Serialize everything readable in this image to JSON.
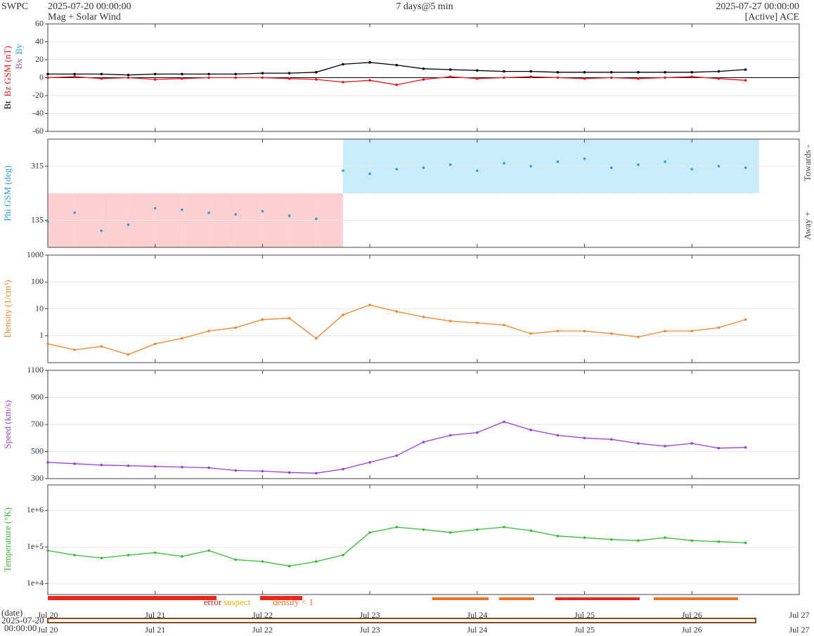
{
  "header": {
    "agency": "SWPC",
    "start": "2025-07-20 00:00:00",
    "subtitle": "Mag + Solar Wind",
    "span": "7 days@5 min",
    "end": "2025-07-27 00:00:00",
    "source": "[Active] ACE"
  },
  "time_axis": {
    "xlim": [
      0,
      7
    ],
    "xticks": [
      {
        "value": 0,
        "label": "Jul 20"
      },
      {
        "value": 1,
        "label": "Jul 21"
      },
      {
        "value": 2,
        "label": "Jul 22"
      },
      {
        "value": 3,
        "label": "Jul 23"
      },
      {
        "value": 4,
        "label": "Jul 24"
      },
      {
        "value": 5,
        "label": "Jul 25"
      },
      {
        "value": 6,
        "label": "Jul 26"
      },
      {
        "value": 7,
        "label": "Jul 27"
      }
    ],
    "date_label": "(date)",
    "date_line1": "2025-07-20",
    "date_line2": "00:00:00"
  },
  "flags": {
    "error": "error",
    "suspect": "suspect",
    "density": "density < 1"
  },
  "chart_data": [
    {
      "type": "line",
      "ylim": [
        -60,
        60
      ],
      "yticks": [
        -60,
        -40,
        -20,
        0,
        20,
        40,
        60
      ],
      "log": false,
      "grid": true,
      "x": [
        0,
        0.25,
        0.5,
        0.75,
        1,
        1.25,
        1.5,
        1.75,
        2,
        2.25,
        2.5,
        2.75,
        3,
        3.25,
        3.5,
        3.75,
        4,
        4.25,
        4.5,
        4.75,
        5,
        5.25,
        5.5,
        5.75,
        6,
        6.25,
        6.5
      ],
      "series": [
        {
          "name": "Bt",
          "color": "#000000",
          "values": [
            4,
            4,
            4,
            3,
            4,
            4,
            4,
            4,
            5,
            5,
            6,
            15,
            17,
            14,
            10,
            9,
            8,
            7,
            7,
            6,
            6,
            6,
            6,
            6,
            6,
            7,
            9
          ]
        },
        {
          "name": "Bz GSM (nT)",
          "color": "#e8141b",
          "values": [
            0,
            1,
            -1,
            0,
            -2,
            -1,
            0,
            0,
            0,
            -1,
            -2,
            -5,
            -3,
            -8,
            -2,
            1,
            -1,
            0,
            1,
            0,
            -1,
            0,
            -1,
            0,
            1,
            -1,
            -3
          ]
        }
      ],
      "extra_labels": [
        {
          "name": "Bx",
          "color": "#9b59d0"
        },
        {
          "name": "By",
          "color": "#29a8e0"
        }
      ]
    },
    {
      "type": "scatter",
      "ylim": [
        45,
        405
      ],
      "yticks": [
        135,
        315
      ],
      "log": false,
      "grid": true,
      "sector_bands": true,
      "x": [
        0,
        0.25,
        0.5,
        0.75,
        1,
        1.25,
        1.5,
        1.75,
        2,
        2.25,
        2.5,
        2.75,
        3,
        3.25,
        3.5,
        3.75,
        4,
        4.25,
        4.5,
        4.75,
        5,
        5.25,
        5.5,
        5.75,
        6,
        6.25,
        6.5
      ],
      "series": [
        {
          "name": "Phi GSM (deg)",
          "color": "#2a9fd8",
          "values": [
            130,
            160,
            100,
            120,
            175,
            170,
            160,
            155,
            165,
            150,
            140,
            300,
            290,
            305,
            310,
            320,
            300,
            325,
            315,
            330,
            340,
            310,
            320,
            330,
            305,
            315,
            310
          ]
        }
      ],
      "side_labels": [
        "Towards -",
        "Away +"
      ]
    },
    {
      "type": "line",
      "ylim": [
        0.1,
        1000
      ],
      "yticks": [
        1,
        10,
        100,
        1000
      ],
      "log": true,
      "grid": true,
      "x": [
        0,
        0.25,
        0.5,
        0.75,
        1,
        1.25,
        1.5,
        1.75,
        2,
        2.25,
        2.5,
        2.75,
        3,
        3.25,
        3.5,
        3.75,
        4,
        4.25,
        4.5,
        4.75,
        5,
        5.25,
        5.5,
        5.75,
        6,
        6.25,
        6.5
      ],
      "series": [
        {
          "name": "Density (1/cm³)",
          "color": "#f0862a",
          "values": [
            0.5,
            0.3,
            0.4,
            0.2,
            0.5,
            0.8,
            1.5,
            2,
            4,
            4.5,
            0.8,
            6,
            14,
            8,
            5,
            3.5,
            3,
            2.5,
            1.2,
            1.5,
            1.5,
            1.2,
            0.9,
            1.5,
            1.5,
            2,
            4
          ]
        }
      ]
    },
    {
      "type": "line",
      "ylim": [
        300,
        1100
      ],
      "yticks": [
        300,
        500,
        700,
        900,
        1100
      ],
      "log": false,
      "grid": true,
      "x": [
        0,
        0.25,
        0.5,
        0.75,
        1,
        1.25,
        1.5,
        1.75,
        2,
        2.25,
        2.5,
        2.75,
        3,
        3.25,
        3.5,
        3.75,
        4,
        4.25,
        4.5,
        4.75,
        5,
        5.25,
        5.5,
        5.75,
        6,
        6.25,
        6.5
      ],
      "series": [
        {
          "name": "Speed (km/s)",
          "color": "#9b3fd6",
          "values": [
            420,
            410,
            400,
            395,
            390,
            385,
            380,
            360,
            355,
            345,
            340,
            370,
            420,
            470,
            570,
            620,
            640,
            720,
            660,
            620,
            600,
            590,
            560,
            540,
            560,
            525,
            530
          ]
        }
      ]
    },
    {
      "type": "line",
      "ylim": [
        5000,
        5000000
      ],
      "yticks": [
        {
          "value": 10000,
          "label": "1e+4"
        },
        {
          "value": 100000,
          "label": "1e+5"
        },
        {
          "value": 1000000,
          "label": "1e+6"
        }
      ],
      "log": true,
      "grid": true,
      "x": [
        0,
        0.25,
        0.5,
        0.75,
        1,
        1.25,
        1.5,
        1.75,
        2,
        2.25,
        2.5,
        2.75,
        3,
        3.25,
        3.5,
        3.75,
        4,
        4.25,
        4.5,
        4.75,
        5,
        5.25,
        5.5,
        5.75,
        6,
        6.25,
        6.5
      ],
      "series": [
        {
          "name": "Temperature (°K)",
          "color": "#33bb33",
          "values": [
            80000,
            60000,
            50000,
            60000,
            70000,
            55000,
            80000,
            45000,
            40000,
            30000,
            40000,
            60000,
            250000,
            350000,
            300000,
            250000,
            300000,
            350000,
            280000,
            200000,
            180000,
            160000,
            150000,
            180000,
            150000,
            140000,
            130000
          ]
        }
      ]
    }
  ]
}
